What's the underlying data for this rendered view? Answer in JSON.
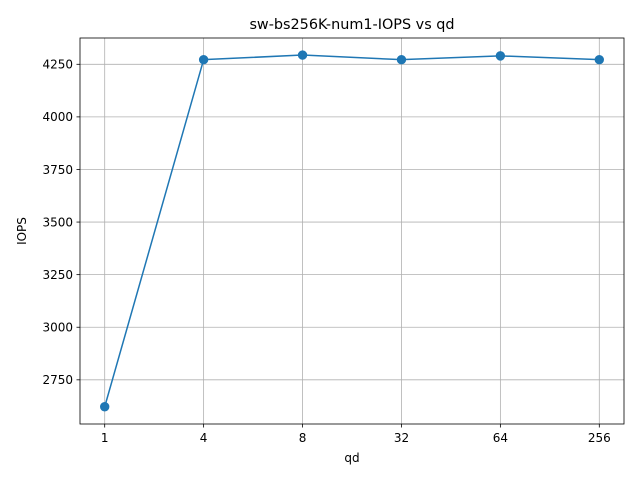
{
  "chart_data": {
    "type": "line",
    "title": "sw-bs256K-num1-IOPS vs qd",
    "xlabel": "qd",
    "ylabel": "IOPS",
    "categories": [
      "1",
      "4",
      "8",
      "32",
      "64",
      "256"
    ],
    "series": [
      {
        "values": [
          2622,
          4272,
          4294,
          4272,
          4290,
          4272
        ],
        "color": "#1f77b4",
        "marker": "circle"
      }
    ],
    "yticks": [
      2750,
      3000,
      3250,
      3500,
      3750,
      4000,
      4250
    ],
    "ylim": [
      2540,
      4375
    ],
    "grid": true
  }
}
